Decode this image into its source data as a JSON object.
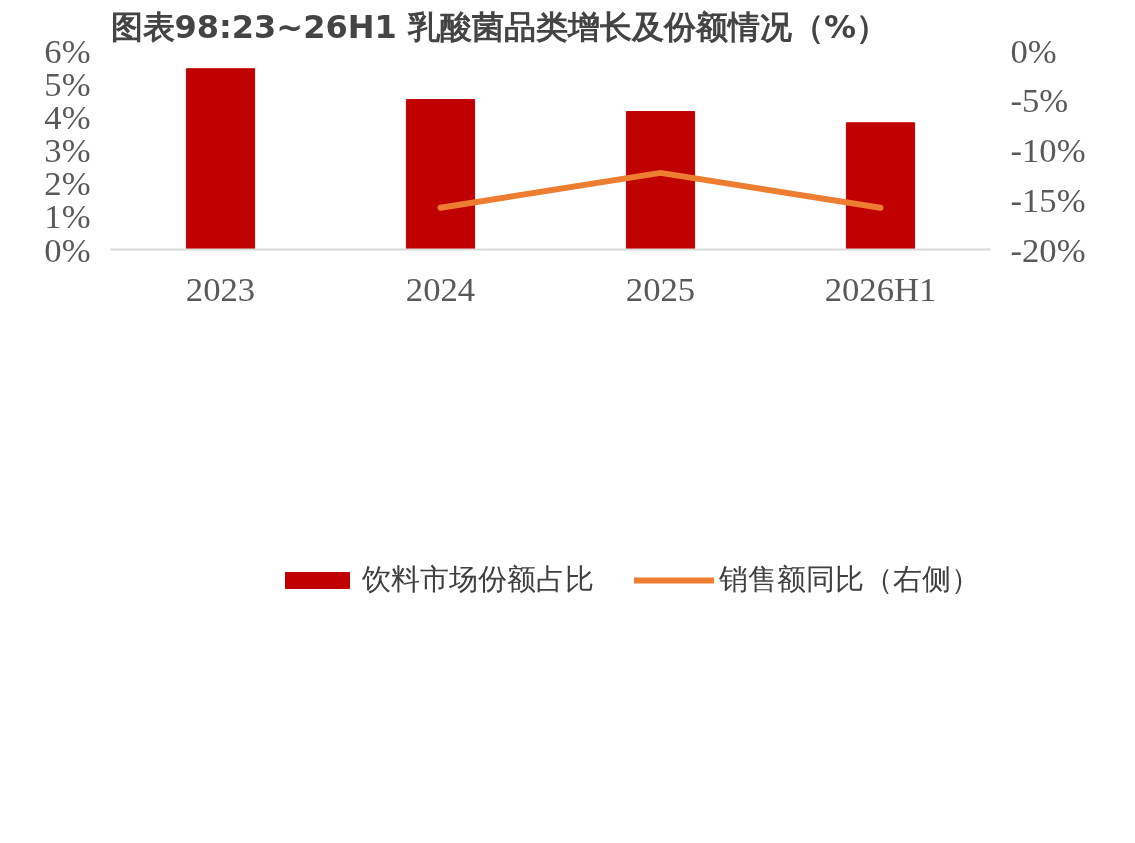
{
  "chart_data": {
    "type": "bar",
    "title": "图表98:23~26H1 乳酸菌品类增长及份额情况（%）",
    "categories": [
      "2023",
      "2024",
      "2025",
      "2026H1"
    ],
    "series": [
      {
        "name": "饮料市场份额占比",
        "color": "#c00000",
        "values": [
          5.45,
          4.52,
          4.16,
          3.82
        ]
      },
      {
        "name": "销售额同比（右侧）",
        "type": "line",
        "axis": "y2",
        "color": "#ed7d31",
        "values": [
          null,
          -15.8,
          -12.3,
          -15.8
        ]
      }
    ],
    "ylim": [
      0,
      6
    ],
    "yticks": [
      {
        "value": 0,
        "label": "0%"
      },
      {
        "value": 1,
        "label": "1%"
      },
      {
        "value": 2,
        "label": "2%"
      },
      {
        "value": 3,
        "label": "3%"
      },
      {
        "value": 4,
        "label": "4%"
      },
      {
        "value": 5,
        "label": "5%"
      },
      {
        "value": 6,
        "label": "6%"
      }
    ],
    "y2lim": [
      -20,
      0
    ],
    "y2ticks": [
      {
        "value": -20,
        "label": "-20%"
      },
      {
        "value": -15,
        "label": "-15%"
      },
      {
        "value": -10,
        "label": "-10%"
      },
      {
        "value": -5,
        "label": "-5%"
      },
      {
        "value": 0,
        "label": "0%"
      }
    ],
    "legend": "bottom",
    "grid": false,
    "line_style": "solid",
    "marker": "none"
  }
}
